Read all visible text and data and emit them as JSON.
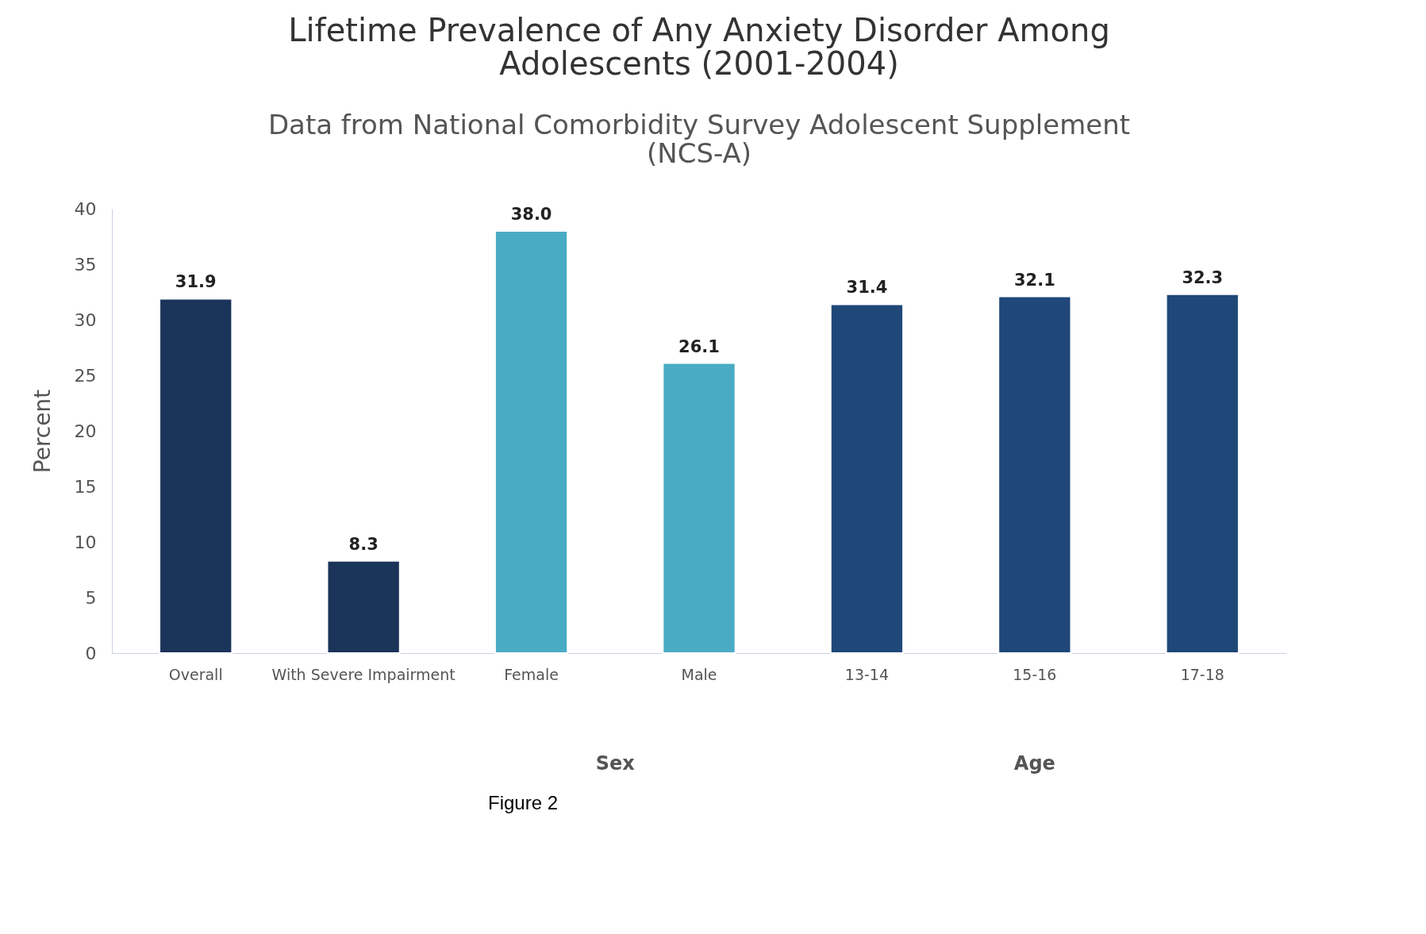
{
  "chart_data": {
    "type": "bar",
    "title": "Lifetime Prevalence of Any Anxiety Disorder Among Adolescents (2001-2004)",
    "subtitle": "Data from National Comorbidity Survey Adolescent Supplement (NCS-A)",
    "ylabel": "Percent",
    "categories": [
      "Overall",
      "With Severe Impairment",
      "Female",
      "Male",
      "13-14",
      "15-16",
      "17-18"
    ],
    "values": [
      31.9,
      8.3,
      38.0,
      26.1,
      31.4,
      32.1,
      32.3
    ],
    "colors": [
      "#1b3459",
      "#1b3459",
      "#4aabc4",
      "#4aabc4",
      "#1f4778",
      "#1f4778",
      "#1f4778"
    ],
    "ylim": [
      0,
      40
    ],
    "yticks": [
      0,
      5,
      10,
      15,
      20,
      25,
      30,
      35,
      40
    ],
    "grid": false,
    "value_labels": [
      "31.9",
      "8.3",
      "38.0",
      "26.1",
      "31.4",
      "32.1",
      "32.3"
    ],
    "annotations": [
      "Sex",
      "Age",
      "Figure 2"
    ]
  }
}
